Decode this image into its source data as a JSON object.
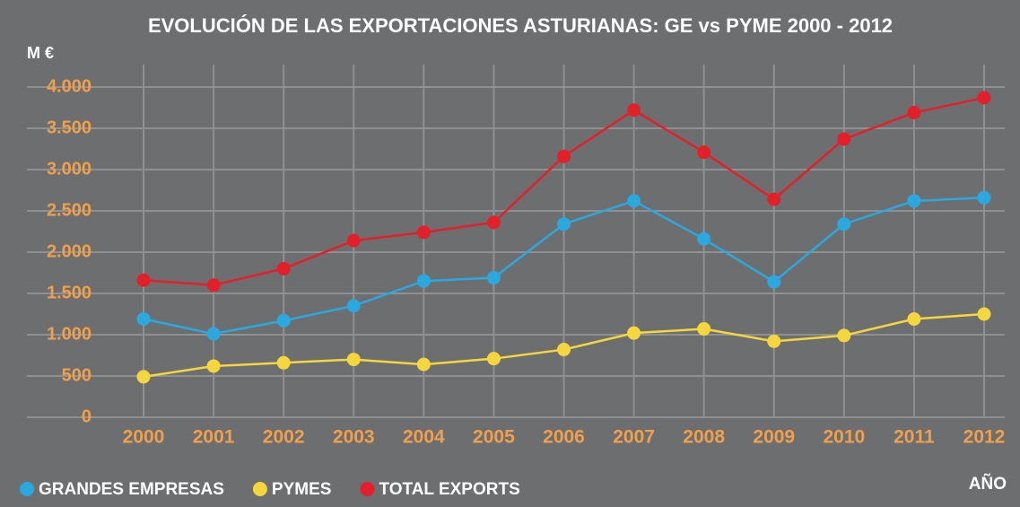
{
  "chart_data": {
    "type": "line",
    "title": "EVOLUCIÓN DE LAS EXPORTACIONES ASTURIANAS: GE vs PYME 2000 - 2012",
    "y_label": "M €",
    "x_label": "AÑO",
    "categories": [
      "2000",
      "2001",
      "2002",
      "2003",
      "2004",
      "2005",
      "2006",
      "2007",
      "2008",
      "2009",
      "2010",
      "2011",
      "2012"
    ],
    "series": [
      {
        "name": "GRANDES EMPRESAS",
        "color": "#29a9e0",
        "values": [
          1190,
          1010,
          1170,
          1350,
          1650,
          1690,
          2340,
          2620,
          2160,
          1640,
          2340,
          2620,
          2660
        ]
      },
      {
        "name": "PYMES",
        "color": "#f5d63d",
        "values": [
          490,
          620,
          660,
          700,
          640,
          710,
          820,
          1020,
          1070,
          920,
          990,
          1190,
          1250
        ]
      },
      {
        "name": "TOTAL EXPORTS",
        "color": "#e3202a",
        "values": [
          1660,
          1600,
          1800,
          2140,
          2240,
          2360,
          3160,
          3720,
          3210,
          2640,
          3370,
          3690,
          3870
        ]
      }
    ],
    "ylim": [
      0,
      4000
    ],
    "yticks": [
      0,
      500,
      {
        "value": 1000,
        "label": "1.000"
      },
      {
        "value": 1500,
        "label": "1.500"
      },
      {
        "value": 2000,
        "label": "2.000"
      },
      {
        "value": 2500,
        "label": "2.500"
      },
      {
        "value": 3000,
        "label": "3.000"
      },
      {
        "value": 3500,
        "label": "3.500"
      },
      {
        "value": 4000,
        "label": "4.000"
      }
    ],
    "grid": true,
    "legend": "bottom-left"
  }
}
